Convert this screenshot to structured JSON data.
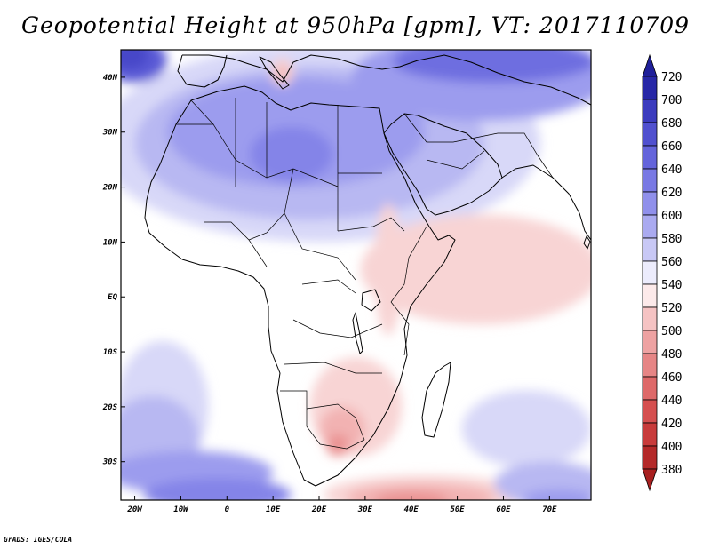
{
  "title": "Geopotential Height at 950hPa [gpm], VT: 2017110709",
  "credit": "GrADS: IGES/COLA",
  "map": {
    "lon_range": [
      -23,
      79
    ],
    "lat_range": [
      -37,
      45
    ],
    "lon_ticks": [
      {
        "value": -20,
        "label": "20W"
      },
      {
        "value": -10,
        "label": "10W"
      },
      {
        "value": 0,
        "label": "0"
      },
      {
        "value": 10,
        "label": "10E"
      },
      {
        "value": 20,
        "label": "20E"
      },
      {
        "value": 30,
        "label": "30E"
      },
      {
        "value": 40,
        "label": "40E"
      },
      {
        "value": 50,
        "label": "50E"
      },
      {
        "value": 60,
        "label": "60E"
      },
      {
        "value": 70,
        "label": "70E"
      }
    ],
    "lat_ticks": [
      {
        "value": 40,
        "label": "40N"
      },
      {
        "value": 30,
        "label": "30N"
      },
      {
        "value": 20,
        "label": "20N"
      },
      {
        "value": 10,
        "label": "10N"
      },
      {
        "value": 0,
        "label": "EQ"
      },
      {
        "value": -10,
        "label": "10S"
      },
      {
        "value": -20,
        "label": "20S"
      },
      {
        "value": -30,
        "label": "30S"
      }
    ]
  },
  "colorbar": {
    "levels": [
      "720",
      "700",
      "680",
      "660",
      "640",
      "620",
      "600",
      "580",
      "560",
      "540",
      "520",
      "500",
      "480",
      "460",
      "440",
      "420",
      "400",
      "380"
    ],
    "colors": [
      "#1f1f9a",
      "#2f2fb4",
      "#4646c8",
      "#5a5ad6",
      "#6e6ee0",
      "#8484e8",
      "#9c9cee",
      "#b8b8f2",
      "#d8d8f8",
      "#ffffff",
      "#f8d4d4",
      "#f2b2b2",
      "#ea9292",
      "#e27878",
      "#da5a5a",
      "#d04444",
      "#c03232",
      "#a82020"
    ]
  },
  "fields": {
    "background_color": "#ffffff",
    "blobs": [
      {
        "level": "560",
        "cx": 20,
        "cy": 28,
        "rx": 48,
        "ry": 18
      },
      {
        "level": "580",
        "cx": 18,
        "cy": 28,
        "rx": 38,
        "ry": 14
      },
      {
        "level": "600",
        "cx": 15,
        "cy": 30,
        "rx": 28,
        "ry": 10
      },
      {
        "level": "620",
        "cx": 14,
        "cy": 26,
        "rx": 9,
        "ry": 5
      },
      {
        "level": "600",
        "cx": 55,
        "cy": 40,
        "rx": 28,
        "ry": 8
      },
      {
        "level": "640",
        "cx": 58,
        "cy": 43,
        "rx": 22,
        "ry": 4
      },
      {
        "level": "660",
        "cx": -20,
        "cy": 43,
        "rx": 7,
        "ry": 4
      },
      {
        "level": "680",
        "cx": -21,
        "cy": 44,
        "rx": 4,
        "ry": 2.5
      },
      {
        "level": "640",
        "cx": 70,
        "cy": 43,
        "rx": 9,
        "ry": 3
      },
      {
        "level": "520",
        "cx": 12,
        "cy": 41,
        "rx": 2.5,
        "ry": 2.5
      },
      {
        "level": "500",
        "cx": 12,
        "cy": 41,
        "rx": 1.2,
        "ry": 1.3
      },
      {
        "level": "520",
        "cx": 55,
        "cy": 5,
        "rx": 26,
        "ry": 10
      },
      {
        "level": "520",
        "cx": 35,
        "cy": 5,
        "rx": 3,
        "ry": 12
      },
      {
        "level": "520",
        "cx": 28,
        "cy": -20,
        "rx": 10,
        "ry": 9
      },
      {
        "level": "500",
        "cx": 25,
        "cy": -24,
        "rx": 5,
        "ry": 4
      },
      {
        "level": "480",
        "cx": 24,
        "cy": -27,
        "rx": 2.5,
        "ry": 2
      },
      {
        "level": "520",
        "cx": 43,
        "cy": -36,
        "rx": 22,
        "ry": 3.5
      },
      {
        "level": "500",
        "cx": 42,
        "cy": -36.5,
        "rx": 16,
        "ry": 2.5
      },
      {
        "level": "480",
        "cx": 40,
        "cy": -37,
        "rx": 8,
        "ry": 1.5
      },
      {
        "level": "560",
        "cx": -14,
        "cy": -20,
        "rx": 10,
        "ry": 12
      },
      {
        "level": "580",
        "cx": -16,
        "cy": -26,
        "rx": 10,
        "ry": 8
      },
      {
        "level": "600",
        "cx": -8,
        "cy": -32,
        "rx": 18,
        "ry": 4
      },
      {
        "level": "620",
        "cx": -2,
        "cy": -36,
        "rx": 16,
        "ry": 3
      },
      {
        "level": "560",
        "cx": 65,
        "cy": -24,
        "rx": 14,
        "ry": 7
      },
      {
        "level": "580",
        "cx": 70,
        "cy": -34,
        "rx": 12,
        "ry": 4
      },
      {
        "level": "600",
        "cx": 72,
        "cy": -37,
        "rx": 8,
        "ry": 2
      }
    ]
  }
}
